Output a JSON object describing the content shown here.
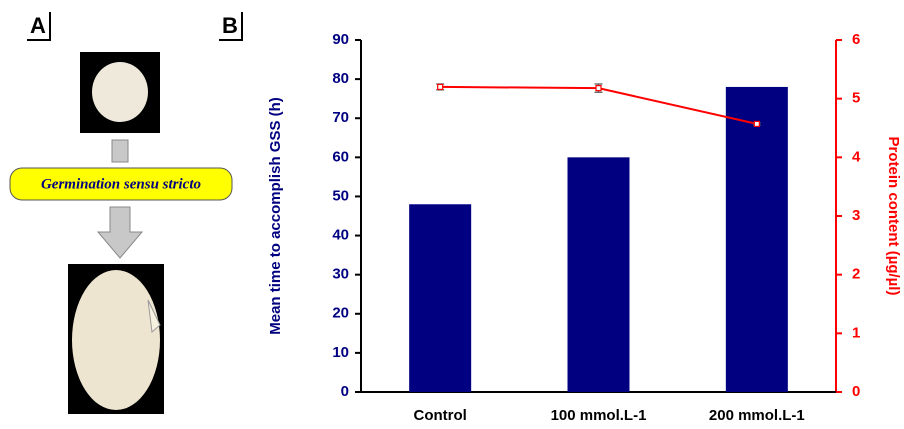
{
  "panels": {
    "a_label": "A",
    "b_label": "B",
    "stage_label": "Germination sensu stricto"
  },
  "chart_data": {
    "type": "bar",
    "categories": [
      "Control",
      "100 mmol.L-1",
      "200 mmol.L-1"
    ],
    "ylabel": "Mean time to accomplish GSS (h)",
    "y2label": "Protein content (µg/µl)",
    "ylim": [
      0,
      90
    ],
    "yticks": [
      0,
      10,
      20,
      30,
      40,
      50,
      60,
      70,
      80,
      90
    ],
    "y2lim": [
      0,
      6
    ],
    "y2ticks": [
      0,
      1,
      2,
      3,
      4,
      5,
      6
    ],
    "series": [
      {
        "type": "bar",
        "color": "#000080",
        "values": [
          48,
          60,
          78
        ]
      },
      {
        "type": "line",
        "axis": "y2",
        "color": "#ff0000",
        "values": [
          5.2,
          5.18,
          4.57
        ],
        "errors": [
          0.05,
          0.07,
          0.02
        ]
      }
    ]
  }
}
